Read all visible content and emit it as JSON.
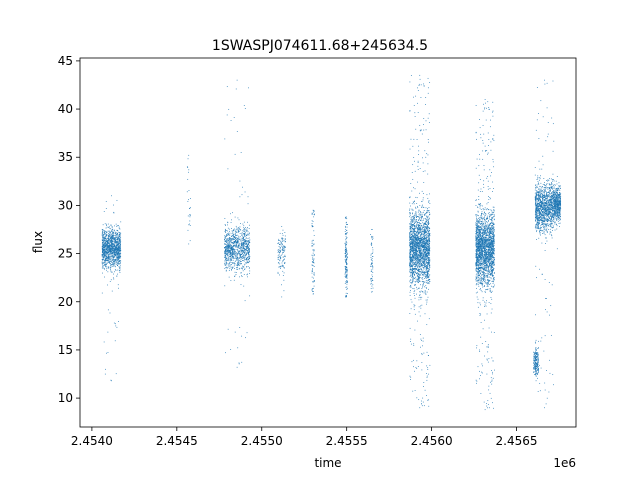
{
  "chart_data": {
    "type": "scatter",
    "title": "1SWASPJ074611.68+245634.5",
    "xlabel": "time",
    "ylabel": "flux",
    "x_offset_label": "1e6",
    "xlim": [
      2453930,
      2456850
    ],
    "ylim": [
      7,
      45.3
    ],
    "x_ticks": [
      {
        "value": 2454000,
        "label": "2.4540"
      },
      {
        "value": 2454500,
        "label": "2.4545"
      },
      {
        "value": 2455000,
        "label": "2.4550"
      },
      {
        "value": 2455500,
        "label": "2.4555"
      },
      {
        "value": 2456000,
        "label": "2.4560"
      },
      {
        "value": 2456500,
        "label": "2.4565"
      }
    ],
    "y_ticks": [
      {
        "value": 10,
        "label": "10"
      },
      {
        "value": 15,
        "label": "15"
      },
      {
        "value": 20,
        "label": "20"
      },
      {
        "value": 25,
        "label": "25"
      },
      {
        "value": 30,
        "label": "30"
      },
      {
        "value": 35,
        "label": "35"
      },
      {
        "value": 40,
        "label": "40"
      },
      {
        "value": 45,
        "label": "45"
      }
    ],
    "grid": false,
    "marker_color": "#1f77b4",
    "clusters": [
      {
        "x_start": 2454060,
        "x_end": 2454170,
        "center": 25.5,
        "core_spread": 1.0,
        "min": 11.8,
        "max": 31.0,
        "density": 1200,
        "outlier_fraction": 0.04
      },
      {
        "x_start": 2454560,
        "x_end": 2454580,
        "center": 31.0,
        "core_spread": 2.0,
        "min": 26.0,
        "max": 35.2,
        "density": 25,
        "outlier_fraction": 0.0
      },
      {
        "x_start": 2454780,
        "x_end": 2454930,
        "center": 25.5,
        "core_spread": 1.1,
        "min": 13.2,
        "max": 43.0,
        "density": 1000,
        "outlier_fraction": 0.04
      },
      {
        "x_start": 2455095,
        "x_end": 2455140,
        "center": 25.0,
        "core_spread": 1.2,
        "min": 20.5,
        "max": 27.8,
        "density": 130,
        "outlier_fraction": 0.08
      },
      {
        "x_start": 2455295,
        "x_end": 2455310,
        "center": 25.0,
        "core_spread": 2.6,
        "min": 20.8,
        "max": 29.5,
        "density": 80,
        "outlier_fraction": 0.0
      },
      {
        "x_start": 2455490,
        "x_end": 2455505,
        "center": 24.5,
        "core_spread": 2.0,
        "min": 20.5,
        "max": 28.8,
        "density": 160,
        "outlier_fraction": 0.0
      },
      {
        "x_start": 2455640,
        "x_end": 2455655,
        "center": 24.0,
        "core_spread": 1.8,
        "min": 21.0,
        "max": 27.5,
        "density": 60,
        "outlier_fraction": 0.0
      },
      {
        "x_start": 2455870,
        "x_end": 2455990,
        "center": 25.5,
        "core_spread": 1.9,
        "min": 9.0,
        "max": 43.5,
        "density": 2200,
        "outlier_fraction": 0.1
      },
      {
        "x_start": 2456260,
        "x_end": 2456370,
        "center": 25.5,
        "core_spread": 1.8,
        "min": 8.8,
        "max": 41.0,
        "density": 2200,
        "outlier_fraction": 0.1
      },
      {
        "x_start": 2456600,
        "x_end": 2456630,
        "center": 13.8,
        "core_spread": 0.8,
        "min": 11.8,
        "max": 16.0,
        "density": 200,
        "outlier_fraction": 0.0
      },
      {
        "x_start": 2456610,
        "x_end": 2456720,
        "center": 29.8,
        "core_spread": 1.2,
        "min": 9.0,
        "max": 43.0,
        "density": 1200,
        "outlier_fraction": 0.06
      },
      {
        "x_start": 2456720,
        "x_end": 2456760,
        "center": 30.0,
        "core_spread": 0.9,
        "min": 25.5,
        "max": 33.0,
        "density": 500,
        "outlier_fraction": 0.0
      }
    ]
  }
}
